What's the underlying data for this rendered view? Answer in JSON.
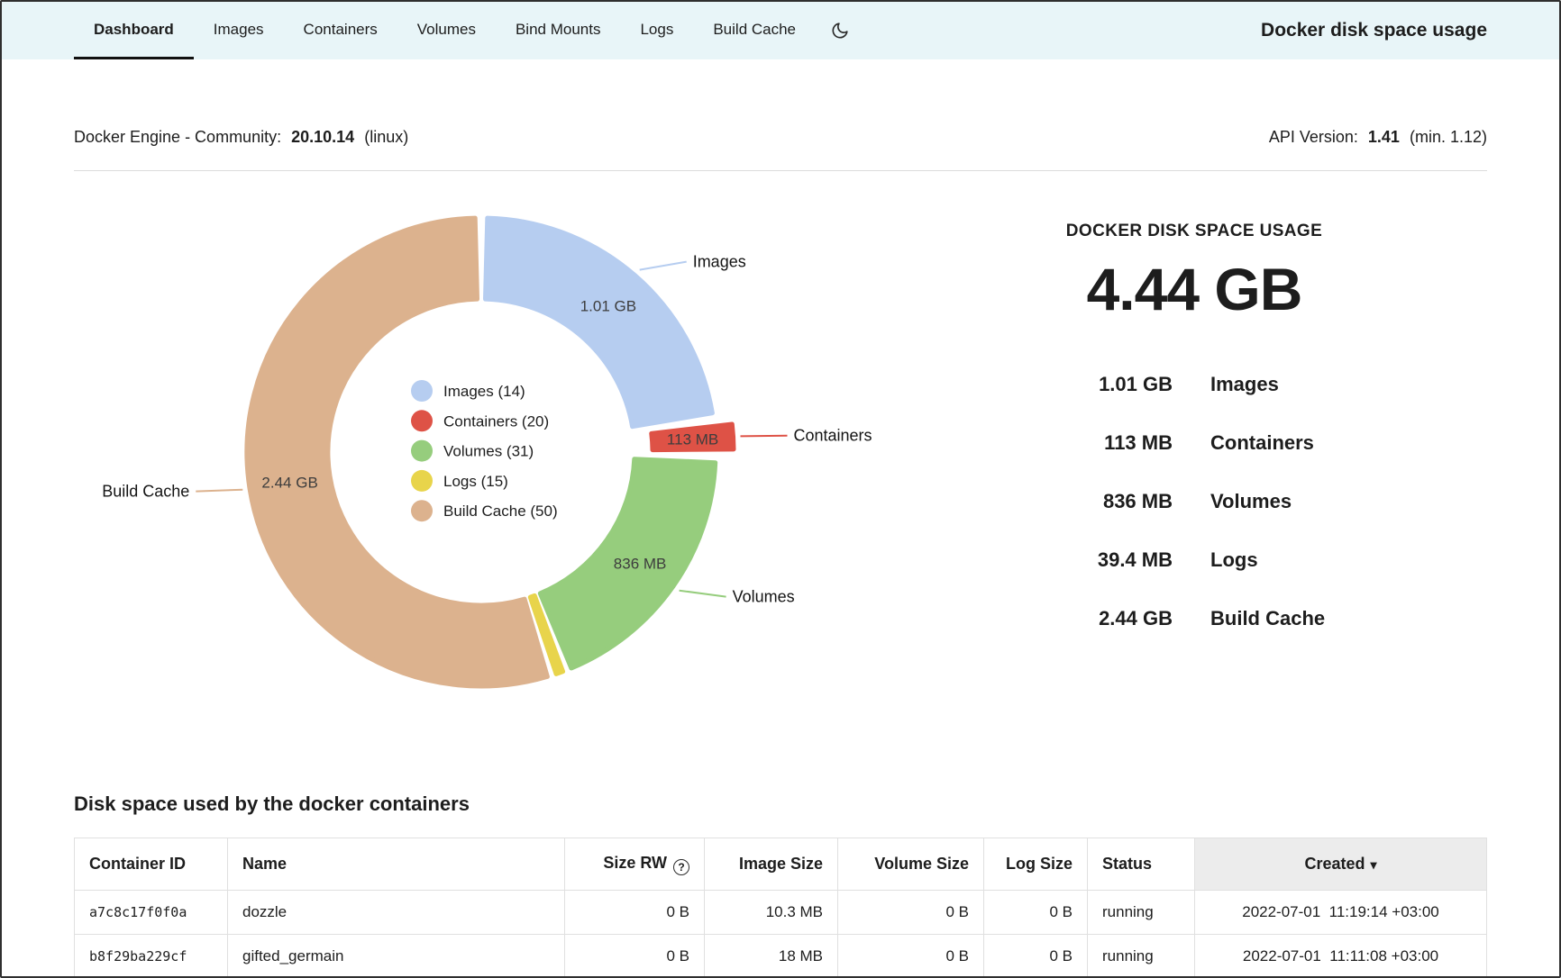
{
  "nav": {
    "tabs": [
      {
        "label": "Dashboard",
        "active": true
      },
      {
        "label": "Images",
        "active": false
      },
      {
        "label": "Containers",
        "active": false
      },
      {
        "label": "Volumes",
        "active": false
      },
      {
        "label": "Bind Mounts",
        "active": false
      },
      {
        "label": "Logs",
        "active": false
      },
      {
        "label": "Build Cache",
        "active": false
      }
    ],
    "title": "Docker disk space usage"
  },
  "engine": {
    "label": "Docker Engine - Community:",
    "version": "20.10.14",
    "os": "(linux)",
    "api_label": "API Version:",
    "api_version": "1.41",
    "api_min": "(min. 1.12)"
  },
  "chart_data": {
    "type": "pie",
    "variant": "donut",
    "title": "DOCKER DISK SPACE USAGE",
    "total_label": "4.44 GB",
    "total_mb": 4438.4,
    "unit": "MB",
    "legend_position": "center",
    "segments": [
      {
        "name": "Images",
        "count": 14,
        "value_mb": 1010,
        "size_label": "1.01 GB",
        "color": "#b6cdf0",
        "exploded": false,
        "callout": true
      },
      {
        "name": "Containers",
        "count": 20,
        "value_mb": 113,
        "size_label": "113 MB",
        "color": "#de5246",
        "exploded": true,
        "callout": true
      },
      {
        "name": "Volumes",
        "count": 31,
        "value_mb": 836,
        "size_label": "836 MB",
        "color": "#96cd7d",
        "exploded": false,
        "callout": true
      },
      {
        "name": "Logs",
        "count": 15,
        "value_mb": 39.4,
        "size_label": "39.4 MB",
        "color": "#e8d44b",
        "exploded": false,
        "callout": false
      },
      {
        "name": "Build Cache",
        "count": 50,
        "value_mb": 2440,
        "size_label": "2.44 GB",
        "color": "#dcb28e",
        "exploded": false,
        "callout": true
      }
    ]
  },
  "usage_summary": {
    "heading": "DOCKER DISK SPACE USAGE",
    "total": "4.44 GB",
    "rows": [
      {
        "value": "1.01 GB",
        "label": "Images"
      },
      {
        "value": "113 MB",
        "label": "Containers"
      },
      {
        "value": "836 MB",
        "label": "Volumes"
      },
      {
        "value": "39.4 MB",
        "label": "Logs"
      },
      {
        "value": "2.44 GB",
        "label": "Build Cache"
      }
    ]
  },
  "containers_section": {
    "heading": "Disk space used by the docker containers",
    "table": {
      "columns": [
        "Container ID",
        "Name",
        "Size RW",
        "Image Size",
        "Volume Size",
        "Log Size",
        "Status",
        "Created"
      ],
      "help_icon": "?",
      "sort_icon": "▾",
      "rows": [
        {
          "container_id": "a7c8c17f0f0a",
          "name": "dozzle",
          "size_rw": "0 B",
          "image_size": "10.3 MB",
          "volume_size": "0 B",
          "log_size": "0 B",
          "status": "running",
          "created": "2022-07-01  11:19:14 +03:00"
        },
        {
          "container_id": "b8f29ba229cf",
          "name": "gifted_germain",
          "size_rw": "0 B",
          "image_size": "18 MB",
          "volume_size": "0 B",
          "log_size": "0 B",
          "status": "running",
          "created": "2022-07-01  11:11:08 +03:00"
        }
      ]
    }
  }
}
